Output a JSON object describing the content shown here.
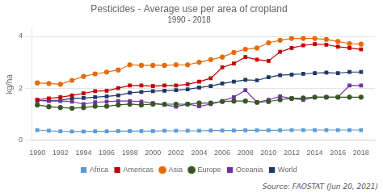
{
  "chart_data": {
    "type": "line",
    "title": "Pesticides - Average use per area of cropland",
    "subtitle": "1990 - 2018",
    "y_label": "kg/ha",
    "source": "Source: FAOSTAT (Jun 20, 2021)",
    "x": [
      1990,
      1991,
      1992,
      1993,
      1994,
      1995,
      1996,
      1997,
      1998,
      1999,
      2000,
      2001,
      2002,
      2003,
      2004,
      2005,
      2006,
      2007,
      2008,
      2009,
      2010,
      2011,
      2012,
      2013,
      2014,
      2015,
      2016,
      2017,
      2018
    ],
    "series": [
      {
        "name": "Africa",
        "color": "#5b9bd5",
        "marker": "square",
        "values": [
          0.38,
          0.35,
          0.33,
          0.32,
          0.32,
          0.33,
          0.33,
          0.34,
          0.34,
          0.34,
          0.34,
          0.35,
          0.35,
          0.35,
          0.35,
          0.36,
          0.36,
          0.36,
          0.37,
          0.37,
          0.37,
          0.37,
          0.38,
          0.38,
          0.38,
          0.38,
          0.38,
          0.38,
          0.38
        ]
      },
      {
        "name": "Americas",
        "color": "#c00000",
        "marker": "square",
        "values": [
          1.55,
          1.6,
          1.65,
          1.72,
          1.8,
          1.88,
          1.9,
          2.0,
          2.1,
          2.1,
          2.08,
          2.1,
          2.1,
          2.15,
          2.25,
          2.38,
          2.8,
          2.95,
          3.2,
          3.1,
          3.05,
          3.4,
          3.55,
          3.65,
          3.7,
          3.68,
          3.6,
          3.55,
          3.5
        ]
      },
      {
        "name": "Asia",
        "color": "#e36c09",
        "marker": "circle",
        "values": [
          2.2,
          2.18,
          2.15,
          2.3,
          2.45,
          2.55,
          2.62,
          2.7,
          2.9,
          2.88,
          2.88,
          2.88,
          2.9,
          2.9,
          3.0,
          3.1,
          3.2,
          3.38,
          3.5,
          3.55,
          3.75,
          3.85,
          3.92,
          3.92,
          3.92,
          3.88,
          3.8,
          3.72,
          3.7
        ]
      },
      {
        "name": "Europe",
        "color": "#375623",
        "marker": "circle",
        "values": [
          1.35,
          1.28,
          1.25,
          1.22,
          1.25,
          1.3,
          1.3,
          1.35,
          1.38,
          1.35,
          1.38,
          1.38,
          1.38,
          1.38,
          1.42,
          1.42,
          1.48,
          1.5,
          1.5,
          1.45,
          1.48,
          1.55,
          1.6,
          1.62,
          1.65,
          1.65,
          1.65,
          1.65,
          1.65
        ]
      },
      {
        "name": "Oceania",
        "color": "#7030a0",
        "marker": "square",
        "values": [
          1.52,
          1.5,
          1.5,
          1.48,
          1.38,
          1.45,
          1.48,
          1.5,
          1.5,
          1.48,
          1.42,
          1.35,
          1.28,
          1.38,
          1.3,
          1.38,
          1.5,
          1.65,
          1.92,
          1.45,
          1.55,
          1.68,
          1.6,
          1.55,
          1.65,
          1.65,
          1.65,
          2.1,
          2.1
        ]
      },
      {
        "name": "World",
        "color": "#1f3864",
        "marker": "square",
        "values": [
          1.52,
          1.52,
          1.53,
          1.6,
          1.62,
          1.65,
          1.68,
          1.72,
          1.82,
          1.85,
          1.88,
          1.9,
          1.92,
          1.95,
          2.02,
          2.08,
          2.18,
          2.25,
          2.32,
          2.3,
          2.42,
          2.5,
          2.52,
          2.55,
          2.58,
          2.6,
          2.58,
          2.62,
          2.62
        ]
      }
    ],
    "xlim": [
      1989.5,
      2019.2
    ],
    "xticks": [
      1990,
      1992,
      1994,
      1996,
      1998,
      2000,
      2002,
      2004,
      2006,
      2008,
      2010,
      2012,
      2014,
      2016,
      2018
    ],
    "ylim": [
      0,
      4.3
    ],
    "yticks": [
      0,
      2,
      4
    ],
    "grid": "y",
    "legend": "bottom"
  }
}
